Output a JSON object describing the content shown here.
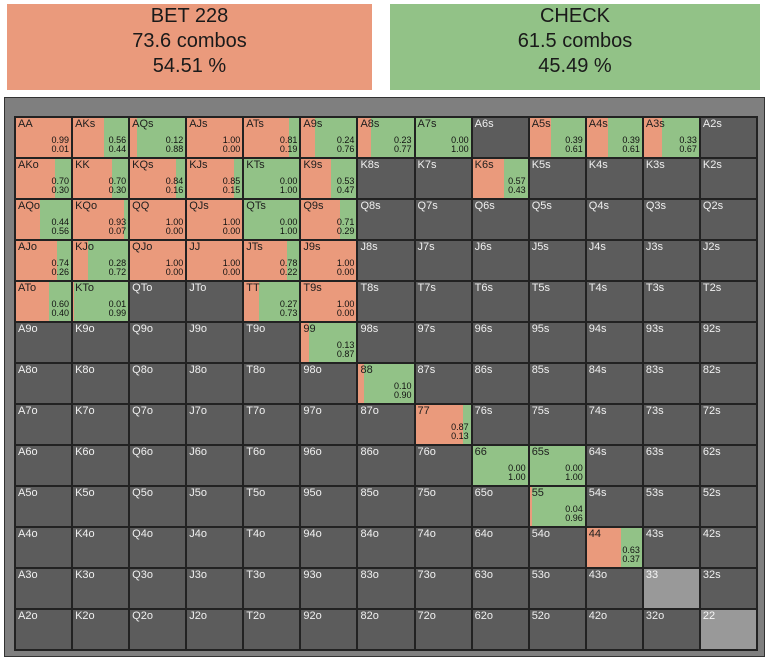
{
  "bet": {
    "title": "BET 228",
    "combos": "73.6 combos",
    "percent": "54.51 %",
    "color": "#ea9a7c"
  },
  "check": {
    "title": "CHECK",
    "combos": "61.5 combos",
    "percent": "45.49 %",
    "color": "#92c287"
  },
  "colors": {
    "bet": "#ea9a7c",
    "check": "#92c287",
    "empty": "#5c5c5c",
    "light": "#999999"
  },
  "grid": [
    [
      {
        "label": "AA",
        "bet": "0.99",
        "check": "0.01"
      },
      {
        "label": "AKs",
        "bet": "0.56",
        "check": "0.44"
      },
      {
        "label": "AQs",
        "bet": "0.12",
        "check": "0.88"
      },
      {
        "label": "AJs",
        "bet": "1.00",
        "check": "0.00"
      },
      {
        "label": "ATs",
        "bet": "0.81",
        "check": "0.19"
      },
      {
        "label": "A9s",
        "bet": "0.24",
        "check": "0.76"
      },
      {
        "label": "A8s",
        "bet": "0.23",
        "check": "0.77"
      },
      {
        "label": "A7s",
        "bet": "0.00",
        "check": "1.00"
      },
      {
        "label": "A6s"
      },
      {
        "label": "A5s",
        "bet": "0.39",
        "check": "0.61"
      },
      {
        "label": "A4s",
        "bet": "0.39",
        "check": "0.61"
      },
      {
        "label": "A3s",
        "bet": "0.33",
        "check": "0.67"
      },
      {
        "label": "A2s"
      }
    ],
    [
      {
        "label": "AKo",
        "bet": "0.70",
        "check": "0.30"
      },
      {
        "label": "KK",
        "bet": "0.70",
        "check": "0.30"
      },
      {
        "label": "KQs",
        "bet": "0.84",
        "check": "0.16"
      },
      {
        "label": "KJs",
        "bet": "0.85",
        "check": "0.15"
      },
      {
        "label": "KTs",
        "bet": "0.00",
        "check": "1.00"
      },
      {
        "label": "K9s",
        "bet": "0.53",
        "check": "0.47"
      },
      {
        "label": "K8s"
      },
      {
        "label": "K7s"
      },
      {
        "label": "K6s",
        "bet": "0.57",
        "check": "0.43"
      },
      {
        "label": "K5s"
      },
      {
        "label": "K4s"
      },
      {
        "label": "K3s"
      },
      {
        "label": "K2s"
      }
    ],
    [
      {
        "label": "AQo",
        "bet": "0.44",
        "check": "0.56"
      },
      {
        "label": "KQo",
        "bet": "0.93",
        "check": "0.07"
      },
      {
        "label": "QQ",
        "bet": "1.00",
        "check": "0.00"
      },
      {
        "label": "QJs",
        "bet": "1.00",
        "check": "0.00"
      },
      {
        "label": "QTs",
        "bet": "0.00",
        "check": "1.00"
      },
      {
        "label": "Q9s",
        "bet": "0.71",
        "check": "0.29"
      },
      {
        "label": "Q8s"
      },
      {
        "label": "Q7s"
      },
      {
        "label": "Q6s"
      },
      {
        "label": "Q5s"
      },
      {
        "label": "Q4s"
      },
      {
        "label": "Q3s"
      },
      {
        "label": "Q2s"
      }
    ],
    [
      {
        "label": "AJo",
        "bet": "0.74",
        "check": "0.26"
      },
      {
        "label": "KJo",
        "bet": "0.28",
        "check": "0.72"
      },
      {
        "label": "QJo",
        "bet": "1.00",
        "check": "0.00"
      },
      {
        "label": "JJ",
        "bet": "1.00",
        "check": "0.00"
      },
      {
        "label": "JTs",
        "bet": "0.78",
        "check": "0.22"
      },
      {
        "label": "J9s",
        "bet": "1.00",
        "check": "0.00"
      },
      {
        "label": "J8s"
      },
      {
        "label": "J7s"
      },
      {
        "label": "J6s"
      },
      {
        "label": "J5s"
      },
      {
        "label": "J4s"
      },
      {
        "label": "J3s"
      },
      {
        "label": "J2s"
      }
    ],
    [
      {
        "label": "ATo",
        "bet": "0.60",
        "check": "0.40"
      },
      {
        "label": "KTo",
        "bet": "0.01",
        "check": "0.99"
      },
      {
        "label": "QTo"
      },
      {
        "label": "JTo"
      },
      {
        "label": "TT",
        "bet": "0.27",
        "check": "0.73"
      },
      {
        "label": "T9s",
        "bet": "1.00",
        "check": "0.00"
      },
      {
        "label": "T8s"
      },
      {
        "label": "T7s"
      },
      {
        "label": "T6s"
      },
      {
        "label": "T5s"
      },
      {
        "label": "T4s"
      },
      {
        "label": "T3s"
      },
      {
        "label": "T2s"
      }
    ],
    [
      {
        "label": "A9o"
      },
      {
        "label": "K9o"
      },
      {
        "label": "Q9o"
      },
      {
        "label": "J9o"
      },
      {
        "label": "T9o"
      },
      {
        "label": "99",
        "bet": "0.13",
        "check": "0.87"
      },
      {
        "label": "98s"
      },
      {
        "label": "97s"
      },
      {
        "label": "96s"
      },
      {
        "label": "95s"
      },
      {
        "label": "94s"
      },
      {
        "label": "93s"
      },
      {
        "label": "92s"
      }
    ],
    [
      {
        "label": "A8o"
      },
      {
        "label": "K8o"
      },
      {
        "label": "Q8o"
      },
      {
        "label": "J8o"
      },
      {
        "label": "T8o"
      },
      {
        "label": "98o"
      },
      {
        "label": "88",
        "bet": "0.10",
        "check": "0.90"
      },
      {
        "label": "87s"
      },
      {
        "label": "86s"
      },
      {
        "label": "85s"
      },
      {
        "label": "84s"
      },
      {
        "label": "83s"
      },
      {
        "label": "82s"
      }
    ],
    [
      {
        "label": "A7o"
      },
      {
        "label": "K7o"
      },
      {
        "label": "Q7o"
      },
      {
        "label": "J7o"
      },
      {
        "label": "T7o"
      },
      {
        "label": "97o"
      },
      {
        "label": "87o"
      },
      {
        "label": "77",
        "bet": "0.87",
        "check": "0.13"
      },
      {
        "label": "76s"
      },
      {
        "label": "75s"
      },
      {
        "label": "74s"
      },
      {
        "label": "73s"
      },
      {
        "label": "72s"
      }
    ],
    [
      {
        "label": "A6o"
      },
      {
        "label": "K6o"
      },
      {
        "label": "Q6o"
      },
      {
        "label": "J6o"
      },
      {
        "label": "T6o"
      },
      {
        "label": "96o"
      },
      {
        "label": "86o"
      },
      {
        "label": "76o"
      },
      {
        "label": "66",
        "bet": "0.00",
        "check": "1.00"
      },
      {
        "label": "65s",
        "bet": "0.00",
        "check": "1.00"
      },
      {
        "label": "64s"
      },
      {
        "label": "63s"
      },
      {
        "label": "62s"
      }
    ],
    [
      {
        "label": "A5o"
      },
      {
        "label": "K5o"
      },
      {
        "label": "Q5o"
      },
      {
        "label": "J5o"
      },
      {
        "label": "T5o"
      },
      {
        "label": "95o"
      },
      {
        "label": "85o"
      },
      {
        "label": "75o"
      },
      {
        "label": "65o"
      },
      {
        "label": "55",
        "bet": "0.04",
        "check": "0.96"
      },
      {
        "label": "54s"
      },
      {
        "label": "53s"
      },
      {
        "label": "52s"
      }
    ],
    [
      {
        "label": "A4o"
      },
      {
        "label": "K4o"
      },
      {
        "label": "Q4o"
      },
      {
        "label": "J4o"
      },
      {
        "label": "T4o"
      },
      {
        "label": "94o"
      },
      {
        "label": "84o"
      },
      {
        "label": "74o"
      },
      {
        "label": "64o"
      },
      {
        "label": "54o"
      },
      {
        "label": "44",
        "bet": "0.63",
        "check": "0.37"
      },
      {
        "label": "43s"
      },
      {
        "label": "42s"
      }
    ],
    [
      {
        "label": "A3o"
      },
      {
        "label": "K3o"
      },
      {
        "label": "Q3o"
      },
      {
        "label": "J3o"
      },
      {
        "label": "T3o"
      },
      {
        "label": "93o"
      },
      {
        "label": "83o"
      },
      {
        "label": "73o"
      },
      {
        "label": "63o"
      },
      {
        "label": "53o"
      },
      {
        "label": "43o"
      },
      {
        "label": "33",
        "light": true
      },
      {
        "label": "32s"
      }
    ],
    [
      {
        "label": "A2o"
      },
      {
        "label": "K2o"
      },
      {
        "label": "Q2o"
      },
      {
        "label": "J2o"
      },
      {
        "label": "T2o"
      },
      {
        "label": "92o"
      },
      {
        "label": "82o"
      },
      {
        "label": "72o"
      },
      {
        "label": "62o"
      },
      {
        "label": "52o"
      },
      {
        "label": "42o"
      },
      {
        "label": "32o"
      },
      {
        "label": "22",
        "light": true
      }
    ]
  ]
}
